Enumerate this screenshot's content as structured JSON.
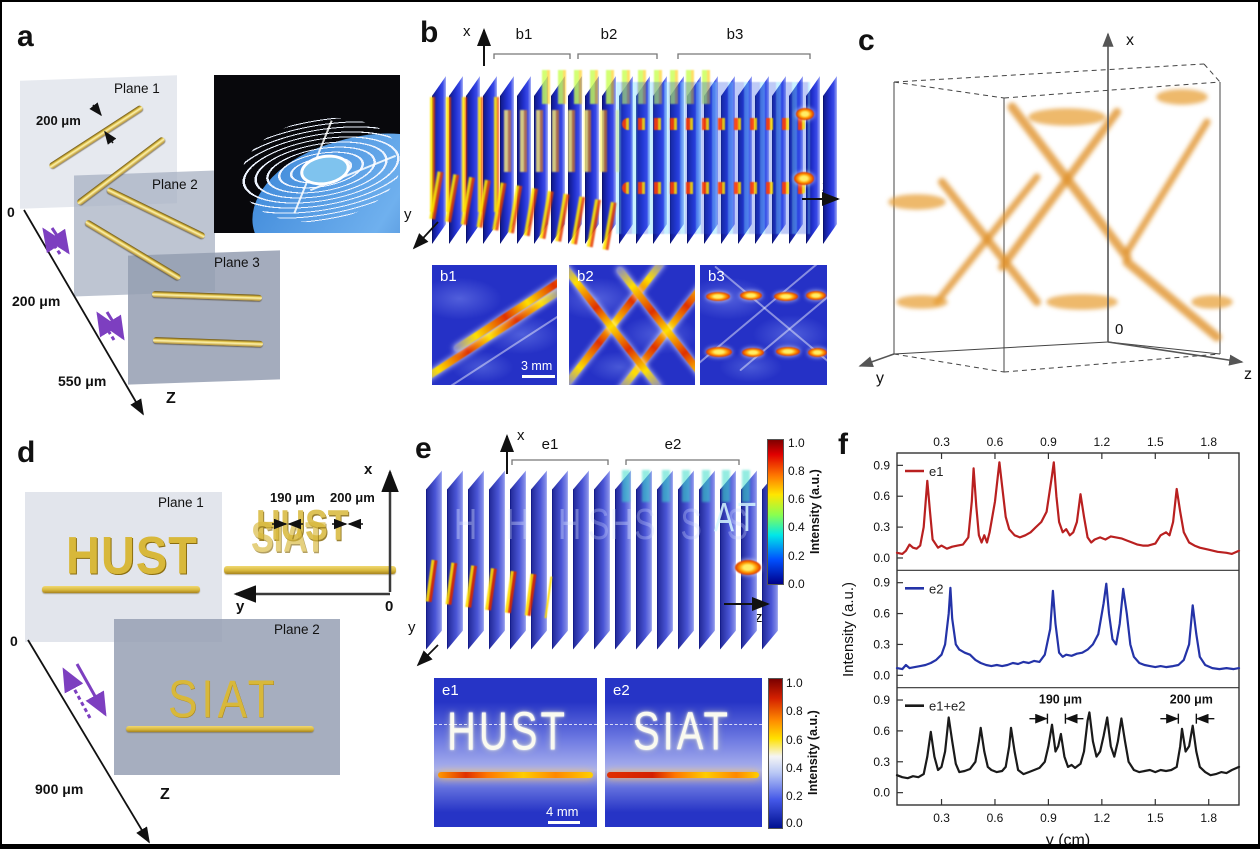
{
  "panel_a": {
    "label": "a",
    "plane1": "Plane 1",
    "plane2": "Plane 2",
    "plane3": "Plane 3",
    "width_note": "200 μm",
    "axis_zero": "0",
    "axis_tick1": "200 μm",
    "axis_tick2": "550 μm",
    "axis_z": "Z"
  },
  "panel_b": {
    "label": "b",
    "x": "x",
    "y": "y",
    "z": "z",
    "g1": "b1",
    "g2": "b2",
    "g3": "b3",
    "inset1": "b1",
    "inset2": "b2",
    "inset3": "b3",
    "scalebar": "3 mm",
    "slice_count": 24
  },
  "panel_c": {
    "label": "c",
    "x": "x",
    "y": "y",
    "z": "z",
    "zero": "0"
  },
  "panel_d": {
    "label": "d",
    "plane1": "Plane 1",
    "plane2": "Plane 2",
    "word1": "HUST",
    "word2": "SIAT",
    "gap1": "190 μm",
    "gap2": "200 μm",
    "depth": "900 μm",
    "zero_axis": "0",
    "zero_diag": "0",
    "x": "x",
    "y": "y",
    "z": "Z"
  },
  "panel_e": {
    "label": "e",
    "x": "x",
    "y": "y",
    "z": "z",
    "g1": "e1",
    "g2": "e2",
    "slice_count": 17,
    "ghost_h": "H H H H",
    "ghost_s": "S S S S",
    "end_letters": "AT",
    "colorbar": {
      "label": "Intensity (a.u.)",
      "ticks": [
        "1.0",
        "0.8",
        "0.6",
        "0.4",
        "0.2",
        "0.0"
      ]
    },
    "inset1": {
      "label": "e1",
      "word": "HUST",
      "scalebar": "4 mm"
    },
    "inset2": {
      "label": "e2",
      "word": "SIAT"
    }
  },
  "chart_data": {
    "type": "line",
    "panel_label": "f",
    "xlabel": "y (cm)",
    "ylabel": "Intensity (a.u.)",
    "xlim": [
      0.05,
      1.97
    ],
    "ylim": [
      -0.12,
      1.02
    ],
    "x_ticks": [
      "0.3",
      "0.6",
      "0.9",
      "1.2",
      "1.5",
      "1.8"
    ],
    "x_tick_values": [
      0.3,
      0.6,
      0.9,
      1.2,
      1.5,
      1.8
    ],
    "y_ticks": [
      "0.0",
      "0.3",
      "0.6",
      "0.9"
    ],
    "y_tick_values": [
      0.0,
      0.3,
      0.6,
      0.9
    ],
    "grid": false,
    "legend_position": "top-left",
    "subplots": [
      {
        "name": "e1",
        "color": "#b92020",
        "points": [
          [
            0.05,
            0.05
          ],
          [
            0.08,
            0.04
          ],
          [
            0.1,
            0.07
          ],
          [
            0.12,
            0.13
          ],
          [
            0.14,
            0.1
          ],
          [
            0.16,
            0.09
          ],
          [
            0.18,
            0.12
          ],
          [
            0.2,
            0.3
          ],
          [
            0.22,
            0.75
          ],
          [
            0.235,
            0.45
          ],
          [
            0.25,
            0.18
          ],
          [
            0.28,
            0.1
          ],
          [
            0.3,
            0.12
          ],
          [
            0.33,
            0.09
          ],
          [
            0.36,
            0.11
          ],
          [
            0.39,
            0.12
          ],
          [
            0.42,
            0.13
          ],
          [
            0.45,
            0.2
          ],
          [
            0.47,
            0.55
          ],
          [
            0.48,
            0.87
          ],
          [
            0.495,
            0.5
          ],
          [
            0.51,
            0.22
          ],
          [
            0.525,
            0.15
          ],
          [
            0.54,
            0.22
          ],
          [
            0.555,
            0.15
          ],
          [
            0.57,
            0.25
          ],
          [
            0.6,
            0.55
          ],
          [
            0.625,
            0.93
          ],
          [
            0.64,
            0.7
          ],
          [
            0.66,
            0.4
          ],
          [
            0.68,
            0.28
          ],
          [
            0.71,
            0.22
          ],
          [
            0.74,
            0.2
          ],
          [
            0.77,
            0.22
          ],
          [
            0.8,
            0.25
          ],
          [
            0.83,
            0.3
          ],
          [
            0.86,
            0.35
          ],
          [
            0.89,
            0.45
          ],
          [
            0.92,
            0.8
          ],
          [
            0.93,
            0.93
          ],
          [
            0.945,
            0.6
          ],
          [
            0.96,
            0.35
          ],
          [
            0.98,
            0.25
          ],
          [
            1.0,
            0.28
          ],
          [
            1.02,
            0.22
          ],
          [
            1.04,
            0.25
          ],
          [
            1.06,
            0.35
          ],
          [
            1.08,
            0.62
          ],
          [
            1.1,
            0.4
          ],
          [
            1.12,
            0.2
          ],
          [
            1.14,
            0.15
          ],
          [
            1.16,
            0.18
          ],
          [
            1.19,
            0.2
          ],
          [
            1.22,
            0.18
          ],
          [
            1.25,
            0.21
          ],
          [
            1.28,
            0.2
          ],
          [
            1.31,
            0.19
          ],
          [
            1.34,
            0.17
          ],
          [
            1.37,
            0.15
          ],
          [
            1.4,
            0.13
          ],
          [
            1.43,
            0.12
          ],
          [
            1.46,
            0.12
          ],
          [
            1.5,
            0.14
          ],
          [
            1.53,
            0.22
          ],
          [
            1.56,
            0.25
          ],
          [
            1.58,
            0.22
          ],
          [
            1.6,
            0.35
          ],
          [
            1.62,
            0.67
          ],
          [
            1.64,
            0.45
          ],
          [
            1.66,
            0.25
          ],
          [
            1.69,
            0.15
          ],
          [
            1.72,
            0.12
          ],
          [
            1.75,
            0.1
          ],
          [
            1.8,
            0.08
          ],
          [
            1.85,
            0.06
          ],
          [
            1.9,
            0.05
          ],
          [
            1.93,
            0.04
          ],
          [
            1.97,
            0.07
          ]
        ]
      },
      {
        "name": "e2",
        "color": "#2433a8",
        "points": [
          [
            0.05,
            0.07
          ],
          [
            0.08,
            0.06
          ],
          [
            0.1,
            0.1
          ],
          [
            0.12,
            0.07
          ],
          [
            0.15,
            0.08
          ],
          [
            0.18,
            0.09
          ],
          [
            0.21,
            0.1
          ],
          [
            0.24,
            0.12
          ],
          [
            0.27,
            0.15
          ],
          [
            0.3,
            0.2
          ],
          [
            0.32,
            0.3
          ],
          [
            0.34,
            0.6
          ],
          [
            0.35,
            0.85
          ],
          [
            0.36,
            0.55
          ],
          [
            0.38,
            0.3
          ],
          [
            0.4,
            0.25
          ],
          [
            0.43,
            0.22
          ],
          [
            0.46,
            0.2
          ],
          [
            0.49,
            0.15
          ],
          [
            0.52,
            0.12
          ],
          [
            0.55,
            0.1
          ],
          [
            0.58,
            0.09
          ],
          [
            0.61,
            0.1
          ],
          [
            0.64,
            0.09
          ],
          [
            0.67,
            0.1
          ],
          [
            0.7,
            0.12
          ],
          [
            0.73,
            0.11
          ],
          [
            0.76,
            0.13
          ],
          [
            0.79,
            0.12
          ],
          [
            0.82,
            0.14
          ],
          [
            0.85,
            0.13
          ],
          [
            0.88,
            0.2
          ],
          [
            0.91,
            0.45
          ],
          [
            0.925,
            0.82
          ],
          [
            0.94,
            0.5
          ],
          [
            0.96,
            0.22
          ],
          [
            0.98,
            0.18
          ],
          [
            1.0,
            0.2
          ],
          [
            1.03,
            0.19
          ],
          [
            1.06,
            0.21
          ],
          [
            1.09,
            0.22
          ],
          [
            1.12,
            0.25
          ],
          [
            1.15,
            0.3
          ],
          [
            1.18,
            0.4
          ],
          [
            1.21,
            0.7
          ],
          [
            1.225,
            0.89
          ],
          [
            1.24,
            0.6
          ],
          [
            1.26,
            0.35
          ],
          [
            1.28,
            0.3
          ],
          [
            1.3,
            0.5
          ],
          [
            1.32,
            0.84
          ],
          [
            1.34,
            0.6
          ],
          [
            1.36,
            0.3
          ],
          [
            1.38,
            0.18
          ],
          [
            1.41,
            0.12
          ],
          [
            1.44,
            0.1
          ],
          [
            1.47,
            0.09
          ],
          [
            1.5,
            0.08
          ],
          [
            1.53,
            0.09
          ],
          [
            1.56,
            0.08
          ],
          [
            1.6,
            0.09
          ],
          [
            1.63,
            0.1
          ],
          [
            1.66,
            0.15
          ],
          [
            1.69,
            0.3
          ],
          [
            1.71,
            0.68
          ],
          [
            1.73,
            0.4
          ],
          [
            1.75,
            0.18
          ],
          [
            1.78,
            0.1
          ],
          [
            1.82,
            0.07
          ],
          [
            1.86,
            0.06
          ],
          [
            1.9,
            0.07
          ],
          [
            1.94,
            0.06
          ],
          [
            1.97,
            0.07
          ]
        ]
      },
      {
        "name": "e1+e2",
        "color": "#1a1a1a",
        "points": [
          [
            0.05,
            0.17
          ],
          [
            0.08,
            0.15
          ],
          [
            0.11,
            0.14
          ],
          [
            0.14,
            0.16
          ],
          [
            0.17,
            0.15
          ],
          [
            0.2,
            0.18
          ],
          [
            0.22,
            0.35
          ],
          [
            0.24,
            0.59
          ],
          [
            0.26,
            0.35
          ],
          [
            0.28,
            0.22
          ],
          [
            0.3,
            0.25
          ],
          [
            0.32,
            0.4
          ],
          [
            0.34,
            0.73
          ],
          [
            0.36,
            0.5
          ],
          [
            0.38,
            0.28
          ],
          [
            0.4,
            0.2
          ],
          [
            0.43,
            0.21
          ],
          [
            0.46,
            0.23
          ],
          [
            0.49,
            0.3
          ],
          [
            0.51,
            0.5
          ],
          [
            0.52,
            0.63
          ],
          [
            0.54,
            0.4
          ],
          [
            0.56,
            0.25
          ],
          [
            0.58,
            0.22
          ],
          [
            0.61,
            0.2
          ],
          [
            0.64,
            0.21
          ],
          [
            0.66,
            0.25
          ],
          [
            0.68,
            0.45
          ],
          [
            0.69,
            0.63
          ],
          [
            0.71,
            0.4
          ],
          [
            0.73,
            0.22
          ],
          [
            0.76,
            0.18
          ],
          [
            0.79,
            0.2
          ],
          [
            0.82,
            0.22
          ],
          [
            0.85,
            0.24
          ],
          [
            0.88,
            0.3
          ],
          [
            0.9,
            0.45
          ],
          [
            0.92,
            0.66
          ],
          [
            0.94,
            0.4
          ],
          [
            0.955,
            0.45
          ],
          [
            0.97,
            0.57
          ],
          [
            0.99,
            0.35
          ],
          [
            1.01,
            0.25
          ],
          [
            1.03,
            0.27
          ],
          [
            1.05,
            0.24
          ],
          [
            1.08,
            0.28
          ],
          [
            1.1,
            0.4
          ],
          [
            1.12,
            0.7
          ],
          [
            1.13,
            0.78
          ],
          [
            1.15,
            0.5
          ],
          [
            1.17,
            0.35
          ],
          [
            1.19,
            0.4
          ],
          [
            1.21,
            0.55
          ],
          [
            1.23,
            0.73
          ],
          [
            1.25,
            0.45
          ],
          [
            1.27,
            0.35
          ],
          [
            1.29,
            0.5
          ],
          [
            1.31,
            0.72
          ],
          [
            1.33,
            0.5
          ],
          [
            1.35,
            0.3
          ],
          [
            1.38,
            0.22
          ],
          [
            1.41,
            0.2
          ],
          [
            1.44,
            0.21
          ],
          [
            1.47,
            0.22
          ],
          [
            1.5,
            0.2
          ],
          [
            1.53,
            0.22
          ],
          [
            1.56,
            0.21
          ],
          [
            1.59,
            0.22
          ],
          [
            1.62,
            0.25
          ],
          [
            1.64,
            0.45
          ],
          [
            1.65,
            0.62
          ],
          [
            1.67,
            0.4
          ],
          [
            1.69,
            0.45
          ],
          [
            1.71,
            0.65
          ],
          [
            1.73,
            0.4
          ],
          [
            1.75,
            0.25
          ],
          [
            1.78,
            0.2
          ],
          [
            1.81,
            0.17
          ],
          [
            1.84,
            0.18
          ],
          [
            1.87,
            0.2
          ],
          [
            1.9,
            0.19
          ],
          [
            1.93,
            0.22
          ],
          [
            1.97,
            0.25
          ]
        ],
        "annotations": [
          {
            "text": "190 μm",
            "x1": 0.92,
            "x2": 0.97
          },
          {
            "text": "200 μm",
            "x1": 1.65,
            "x2": 1.71
          }
        ]
      }
    ]
  }
}
